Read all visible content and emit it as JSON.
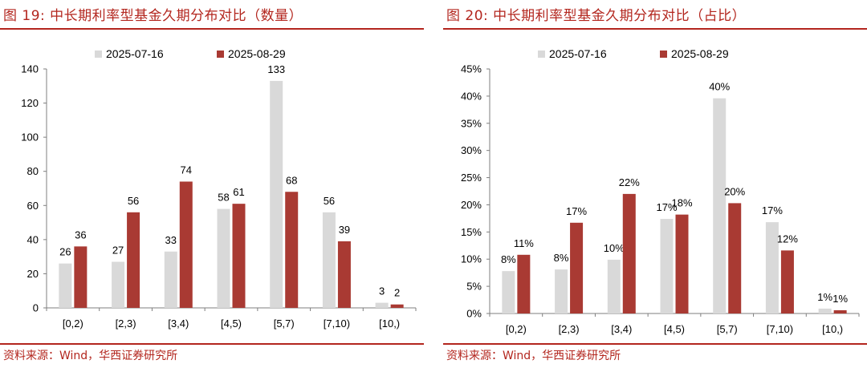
{
  "colors": {
    "series_1": "#d9d9d9",
    "series_2": "#a93a33",
    "accent": "#b3261e"
  },
  "panels": [
    {
      "title": "图 19:  中长期利率型基金久期分布对比（数量）",
      "source": "资料来源：Wind，华西证券研究所"
    },
    {
      "title": "图 20:  中长期利率型基金久期分布对比（占比）",
      "source": "资料来源：Wind，华西证券研究所"
    }
  ],
  "chart_data": [
    {
      "type": "bar",
      "title": "",
      "xlabel": "",
      "ylabel": "",
      "categories": [
        "[0,2)",
        "[2,3)",
        "[3,4)",
        "[4,5)",
        "[5,7)",
        "[7,10)",
        "[10,)"
      ],
      "series": [
        {
          "name": "2025-07-16",
          "values": [
            26,
            27,
            33,
            58,
            133,
            56,
            3
          ],
          "labels": [
            "26",
            "27",
            "33",
            "58",
            "133",
            "56",
            "3"
          ]
        },
        {
          "name": "2025-08-29",
          "values": [
            36,
            56,
            74,
            61,
            68,
            39,
            2
          ],
          "labels": [
            "36",
            "56",
            "74",
            "61",
            "68",
            "39",
            "2"
          ]
        }
      ],
      "ylim": [
        0,
        140
      ],
      "yticks": [
        0,
        20,
        40,
        60,
        80,
        100,
        120,
        140
      ],
      "ytick_labels": [
        "0",
        "20",
        "40",
        "60",
        "80",
        "100",
        "120",
        "140"
      ],
      "grid": false,
      "legend_position": "top"
    },
    {
      "type": "bar",
      "title": "",
      "xlabel": "",
      "ylabel": "",
      "categories": [
        "[0,2)",
        "[2,3)",
        "[3,4)",
        "[4,5)",
        "[5,7)",
        "[7,10)",
        "[10,)"
      ],
      "series": [
        {
          "name": "2025-07-16",
          "values": [
            7.8,
            8.1,
            9.9,
            17.4,
            39.6,
            16.8,
            0.9
          ],
          "labels": [
            "8%",
            "8%",
            "10%",
            "17%",
            "40%",
            "17%",
            "1%"
          ]
        },
        {
          "name": "2025-08-29",
          "values": [
            10.8,
            16.7,
            22.0,
            18.2,
            20.3,
            11.6,
            0.6
          ],
          "labels": [
            "11%",
            "17%",
            "22%",
            "18%",
            "20%",
            "12%",
            "1%"
          ]
        }
      ],
      "ylim": [
        0,
        45
      ],
      "yticks": [
        0,
        5,
        10,
        15,
        20,
        25,
        30,
        35,
        40,
        45
      ],
      "ytick_labels": [
        "0%",
        "5%",
        "10%",
        "15%",
        "20%",
        "25%",
        "30%",
        "35%",
        "40%",
        "45%"
      ],
      "grid": false,
      "legend_position": "top"
    }
  ]
}
